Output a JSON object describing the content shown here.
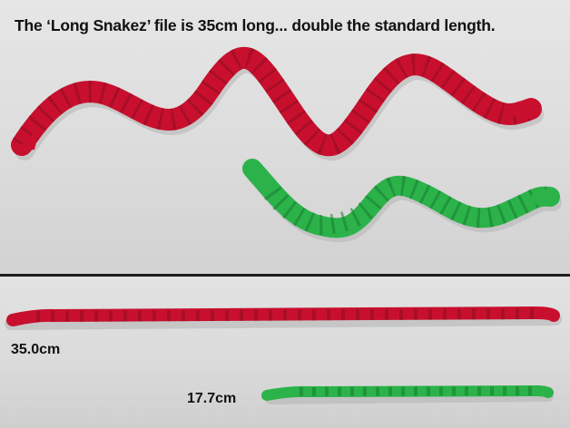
{
  "photo": {
    "headline": "The ‘Long Snakez’ file is 35cm long... double the standard length.",
    "long_length_label": "35.0cm",
    "short_length_label": "17.7cm"
  },
  "colors": {
    "red_snake": "#c8102e",
    "red_snake_shade": "#8f0c22",
    "green_snake": "#2bb34a",
    "green_snake_shade": "#1a7a31",
    "divider": "#1c1c1c"
  }
}
